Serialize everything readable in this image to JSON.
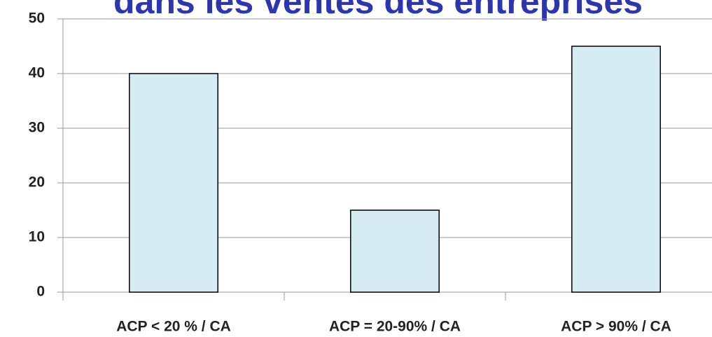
{
  "chart_data": {
    "type": "bar",
    "title": "dans les ventes des entreprises",
    "categories": [
      "ACP < 20 % / CA",
      "ACP = 20-90% / CA",
      "ACP > 90% / CA"
    ],
    "values": [
      40,
      15,
      45
    ],
    "color": "#d5ecf3",
    "ylim": [
      0,
      50
    ],
    "yticks": [
      0,
      10,
      20,
      30,
      40,
      50
    ],
    "grid": true
  }
}
